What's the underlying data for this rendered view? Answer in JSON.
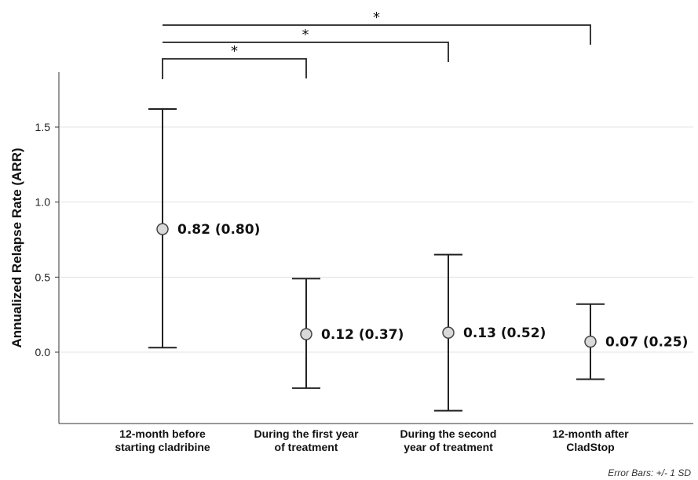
{
  "chart_data": {
    "type": "errorbar",
    "ylabel": "Annualized Relapse Rate (ARR)",
    "ylim": [
      -0.4,
      1.85
    ],
    "yticks": [
      "0.0",
      "0.5",
      "1.0",
      "1.5"
    ],
    "yticks_values": [
      0.0,
      0.5,
      1.0,
      1.5
    ],
    "grid": "horizontal",
    "categories": [
      [
        "12-month before",
        "starting cladribine"
      ],
      [
        "During the first year",
        "of treatment"
      ],
      [
        "During the second",
        "year of treatment"
      ],
      [
        "12-month after",
        "CladStop"
      ]
    ],
    "means": [
      0.82,
      0.12,
      0.13,
      0.07
    ],
    "sd": [
      0.8,
      0.37,
      0.52,
      0.25
    ],
    "lower": [
      0.03,
      -0.24,
      -0.39,
      -0.18
    ],
    "upper": [
      1.62,
      0.49,
      0.65,
      0.32
    ],
    "data_labels": [
      "0.82 (0.80)",
      "0.12 (0.37)",
      "0.13 (0.52)",
      "0.07 (0.25)"
    ],
    "significance": [
      {
        "from": 0,
        "to": 1,
        "label": "*"
      },
      {
        "from": 0,
        "to": 2,
        "label": "*"
      },
      {
        "from": 0,
        "to": 3,
        "label": "*"
      }
    ],
    "note": "Error Bars: +/- 1 SD"
  }
}
